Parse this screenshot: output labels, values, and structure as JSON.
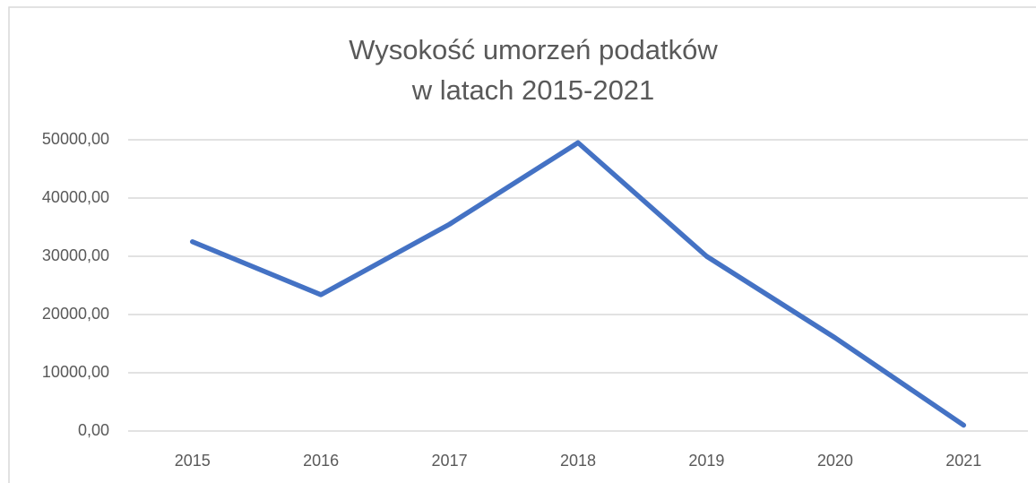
{
  "chart_data": {
    "type": "line",
    "title": [
      "Wysokość umorzeń podatków",
      "w latach 2015-2021"
    ],
    "categories": [
      "2015",
      "2016",
      "2017",
      "2018",
      "2019",
      "2020",
      "2021"
    ],
    "values": [
      32500,
      23400,
      35500,
      49500,
      30000,
      16000,
      1000
    ],
    "color": "#4472c4",
    "ylim": [
      0,
      50000
    ],
    "yticks": [
      {
        "value": 0,
        "label": "0,00"
      },
      {
        "value": 10000,
        "label": "10000,00"
      },
      {
        "value": 20000,
        "label": "20000,00"
      },
      {
        "value": 30000,
        "label": "30000,00"
      },
      {
        "value": 40000,
        "label": "40000,00"
      },
      {
        "value": 50000,
        "label": "50000,00"
      }
    ],
    "grid": true
  }
}
